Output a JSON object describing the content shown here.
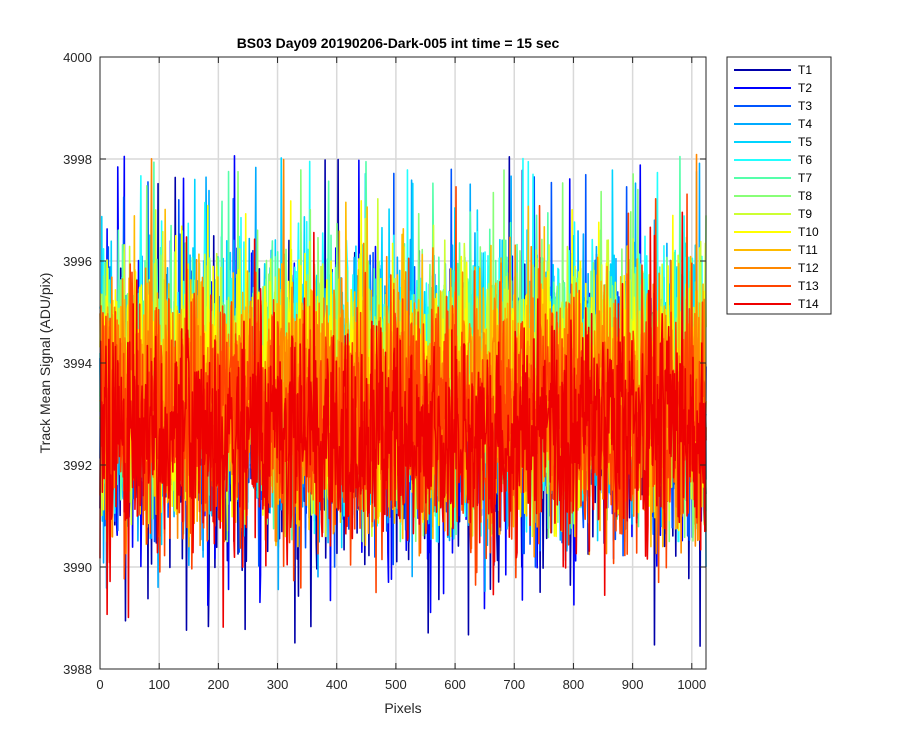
{
  "chart_data": {
    "type": "line",
    "title": "BS03 Day09 20190206-Dark-005 int time = 15 sec",
    "xlabel": "Pixels",
    "ylabel": "Track Mean Signal (ADU/pix)",
    "xlim": [
      0,
      1024
    ],
    "ylim": [
      3988,
      4000
    ],
    "xticks": [
      0,
      100,
      200,
      300,
      400,
      500,
      600,
      700,
      800,
      900,
      1000
    ],
    "yticks": [
      3988,
      3990,
      3992,
      3994,
      3996,
      3998,
      4000
    ],
    "grid": true,
    "legend_position": "outside-top-right",
    "points_per_series": 1024,
    "series": [
      {
        "name": "T1",
        "color": "#0000AA",
        "mean": 3992.9,
        "spread": 1.6,
        "min": 3988.4,
        "max": 3998.1
      },
      {
        "name": "T2",
        "color": "#0000FF",
        "mean": 3993.0,
        "spread": 1.6,
        "min": 3989.1,
        "max": 3998.1
      },
      {
        "name": "T3",
        "color": "#0055FF",
        "mean": 3993.2,
        "spread": 1.6,
        "min": 3990.0,
        "max": 3997.8
      },
      {
        "name": "T4",
        "color": "#00AAFF",
        "mean": 3993.5,
        "spread": 1.6,
        "min": 3989.5,
        "max": 3998.1
      },
      {
        "name": "T5",
        "color": "#00D4FF",
        "mean": 3993.7,
        "spread": 1.6,
        "min": 3990.3,
        "max": 3998.1
      },
      {
        "name": "T6",
        "color": "#22FFFF",
        "mean": 3993.9,
        "spread": 1.6,
        "min": 3990.5,
        "max": 3998.1
      },
      {
        "name": "T7",
        "color": "#55FFAA",
        "mean": 3993.8,
        "spread": 1.6,
        "min": 3990.5,
        "max": 3998.1
      },
      {
        "name": "T8",
        "color": "#88FF77",
        "mean": 3993.7,
        "spread": 1.6,
        "min": 3990.5,
        "max": 3997.9
      },
      {
        "name": "T9",
        "color": "#CCFF33",
        "mean": 3993.6,
        "spread": 1.5,
        "min": 3990.6,
        "max": 3997.5
      },
      {
        "name": "T10",
        "color": "#FFFF00",
        "mean": 3993.5,
        "spread": 1.5,
        "min": 3990.6,
        "max": 3997.3
      },
      {
        "name": "T11",
        "color": "#FFBB00",
        "mean": 3993.3,
        "spread": 1.5,
        "min": 3990.4,
        "max": 3997.2
      },
      {
        "name": "T12",
        "color": "#FF8800",
        "mean": 3993.2,
        "spread": 1.5,
        "min": 3990.2,
        "max": 3998.3
      },
      {
        "name": "T13",
        "color": "#FF4400",
        "mean": 3992.9,
        "spread": 1.5,
        "min": 3989.5,
        "max": 3997.5
      },
      {
        "name": "T14",
        "color": "#EE0000",
        "mean": 3992.6,
        "spread": 1.4,
        "min": 3988.7,
        "max": 3997.0
      }
    ]
  }
}
